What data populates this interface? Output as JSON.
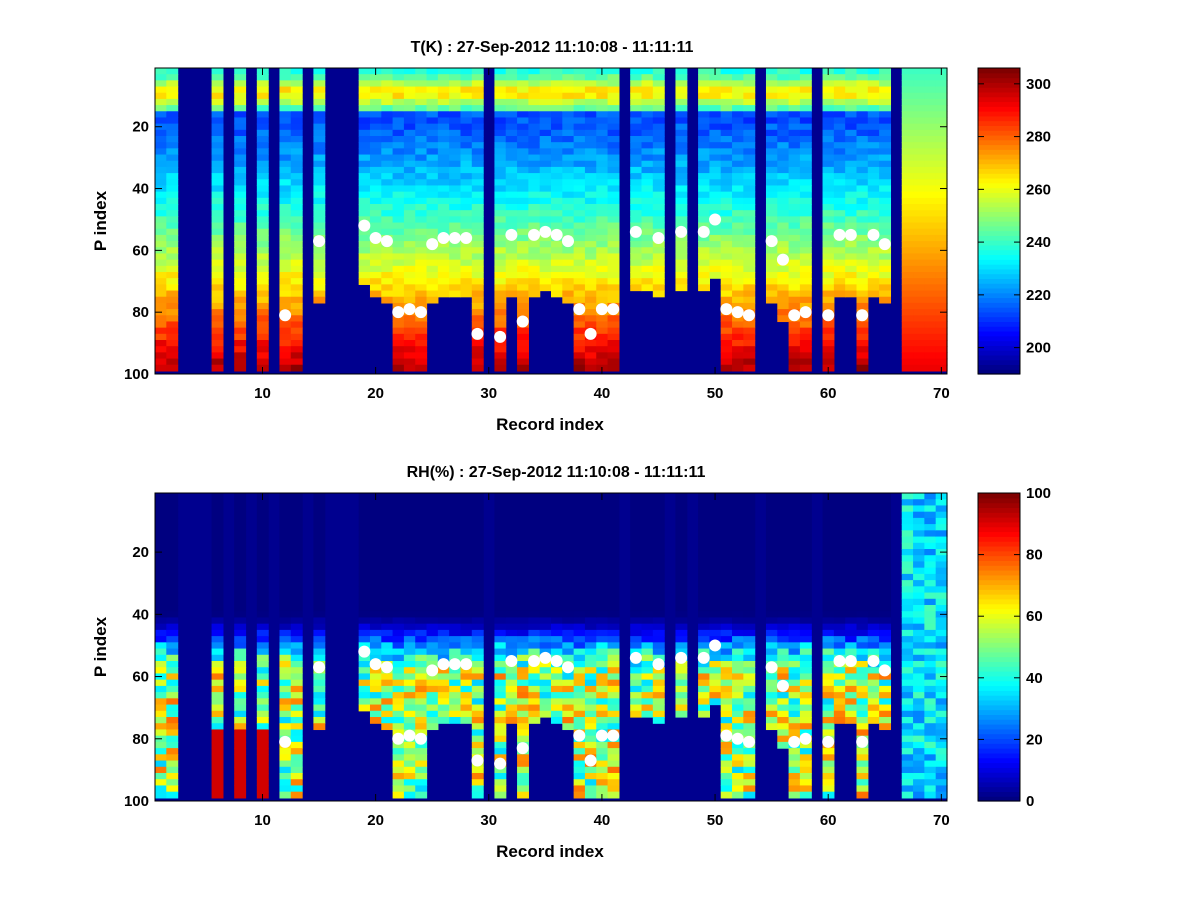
{
  "colors": {
    "background": "#ffffff",
    "axis": "#000000",
    "marker": "#ffffff",
    "missing": "#00008f"
  },
  "chart_data": [
    {
      "type": "heatmap",
      "title": "T(K) : 27-Sep-2012 11:10:08 - 11:11:11",
      "xlabel": "Record index",
      "ylabel": "P index",
      "xlim": [
        0.5,
        70.5
      ],
      "ylim": [
        1,
        100
      ],
      "y_reversed": true,
      "x_ticks": [
        10,
        20,
        30,
        40,
        50,
        60,
        70
      ],
      "y_ticks": [
        20,
        40,
        60,
        80,
        100
      ],
      "colorbar": {
        "range": [
          190,
          306
        ],
        "ticks": [
          200,
          220,
          240,
          260,
          280,
          300
        ]
      },
      "surface_markers": [
        [
          12,
          81
        ],
        [
          15,
          57
        ],
        [
          19,
          52
        ],
        [
          20,
          56
        ],
        [
          21,
          57
        ],
        [
          22,
          80
        ],
        [
          23,
          79
        ],
        [
          24,
          80
        ],
        [
          25,
          58
        ],
        [
          26,
          56
        ],
        [
          27,
          56
        ],
        [
          28,
          56
        ],
        [
          29,
          87
        ],
        [
          31,
          88
        ],
        [
          32,
          55
        ],
        [
          33,
          83
        ],
        [
          34,
          55
        ],
        [
          35,
          54
        ],
        [
          36,
          55
        ],
        [
          37,
          57
        ],
        [
          38,
          79
        ],
        [
          39,
          87
        ],
        [
          40,
          79
        ],
        [
          41,
          79
        ],
        [
          43,
          54
        ],
        [
          45,
          56
        ],
        [
          47,
          54
        ],
        [
          49,
          54
        ],
        [
          50,
          50
        ],
        [
          51,
          79
        ],
        [
          52,
          80
        ],
        [
          53,
          81
        ],
        [
          55,
          57
        ],
        [
          56,
          63
        ],
        [
          57,
          81
        ],
        [
          58,
          80
        ],
        [
          60,
          81
        ],
        [
          61,
          55
        ],
        [
          62,
          55
        ],
        [
          63,
          81
        ],
        [
          64,
          55
        ],
        [
          65,
          58
        ]
      ]
    },
    {
      "type": "heatmap",
      "title": "RH(%) : 27-Sep-2012 11:10:08 - 11:11:11",
      "xlabel": "Record index",
      "ylabel": "P index",
      "xlim": [
        0.5,
        70.5
      ],
      "ylim": [
        1,
        100
      ],
      "y_reversed": true,
      "x_ticks": [
        10,
        20,
        30,
        40,
        50,
        60,
        70
      ],
      "y_ticks": [
        20,
        40,
        60,
        80,
        100
      ],
      "colorbar": {
        "range": [
          0,
          100
        ],
        "ticks": [
          0,
          20,
          40,
          60,
          80,
          100
        ]
      },
      "surface_markers": [
        [
          12,
          81
        ],
        [
          15,
          57
        ],
        [
          19,
          52
        ],
        [
          20,
          56
        ],
        [
          21,
          57
        ],
        [
          22,
          80
        ],
        [
          23,
          79
        ],
        [
          24,
          80
        ],
        [
          25,
          58
        ],
        [
          26,
          56
        ],
        [
          27,
          56
        ],
        [
          28,
          56
        ],
        [
          29,
          87
        ],
        [
          31,
          88
        ],
        [
          32,
          55
        ],
        [
          33,
          83
        ],
        [
          34,
          55
        ],
        [
          35,
          54
        ],
        [
          36,
          55
        ],
        [
          37,
          57
        ],
        [
          38,
          79
        ],
        [
          39,
          87
        ],
        [
          40,
          79
        ],
        [
          41,
          79
        ],
        [
          43,
          54
        ],
        [
          45,
          56
        ],
        [
          47,
          54
        ],
        [
          49,
          54
        ],
        [
          50,
          50
        ],
        [
          51,
          79
        ],
        [
          52,
          80
        ],
        [
          53,
          81
        ],
        [
          55,
          57
        ],
        [
          56,
          63
        ],
        [
          57,
          81
        ],
        [
          58,
          80
        ],
        [
          60,
          81
        ],
        [
          61,
          55
        ],
        [
          62,
          55
        ],
        [
          63,
          81
        ],
        [
          64,
          55
        ],
        [
          65,
          58
        ]
      ]
    }
  ]
}
